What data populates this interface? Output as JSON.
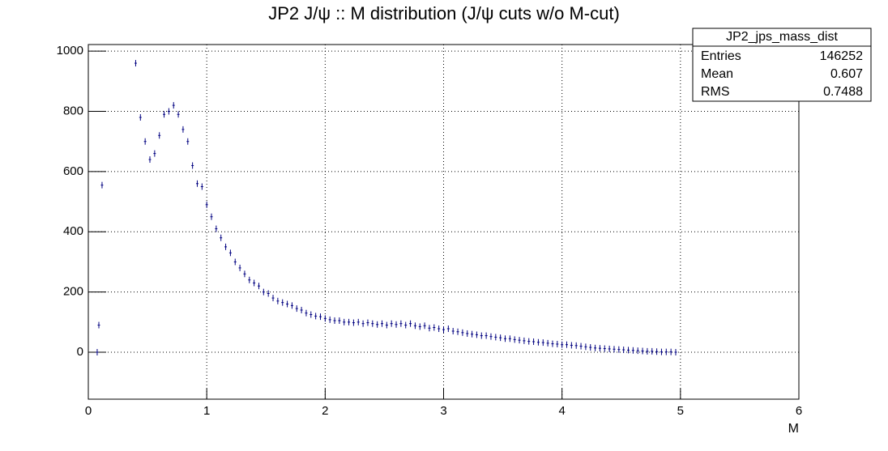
{
  "chart_data": {
    "type": "histogram",
    "title": "JP2 J/ψ :: M distribution (J/ψ cuts w/o M-cut)",
    "x_label": "M",
    "color": "#000080",
    "grid": true,
    "xlim": [
      0,
      6
    ],
    "xticks": [
      0,
      1,
      2,
      3,
      4,
      5,
      6
    ],
    "ylim": [
      -156,
      1022
    ],
    "yticks": [
      0,
      200,
      400,
      600,
      800,
      1000
    ],
    "stats": {
      "title": "JP2_jps_mass_dist",
      "rows": [
        [
          "Entries",
          "146252"
        ],
        [
          "Mean",
          "0.607"
        ],
        [
          "RMS",
          "0.7488"
        ]
      ]
    },
    "x": [
      0.075,
      0.089,
      0.116,
      0.4,
      0.44,
      0.48,
      0.52,
      0.56,
      0.6,
      0.64,
      0.68,
      0.72,
      0.76,
      0.8,
      0.84,
      0.88,
      0.92,
      0.96,
      1.0,
      1.04,
      1.08,
      1.12,
      1.16,
      1.2,
      1.24,
      1.28,
      1.32,
      1.36,
      1.4,
      1.44,
      1.48,
      1.52,
      1.56,
      1.6,
      1.64,
      1.68,
      1.72,
      1.76,
      1.8,
      1.84,
      1.88,
      1.92,
      1.96,
      2.0,
      2.04,
      2.08,
      2.12,
      2.16,
      2.2,
      2.24,
      2.28,
      2.32,
      2.36,
      2.4,
      2.44,
      2.48,
      2.52,
      2.56,
      2.6,
      2.64,
      2.68,
      2.72,
      2.76,
      2.8,
      2.84,
      2.88,
      2.92,
      2.96,
      3.0,
      3.04,
      3.08,
      3.12,
      3.16,
      3.2,
      3.24,
      3.28,
      3.32,
      3.36,
      3.4,
      3.44,
      3.48,
      3.52,
      3.56,
      3.6,
      3.64,
      3.68,
      3.72,
      3.76,
      3.8,
      3.84,
      3.88,
      3.92,
      3.96,
      4.0,
      4.04,
      4.08,
      4.12,
      4.16,
      4.2,
      4.24,
      4.28,
      4.32,
      4.36,
      4.4,
      4.44,
      4.48,
      4.52,
      4.56,
      4.6,
      4.64,
      4.68,
      4.72,
      4.76,
      4.8,
      4.84,
      4.88,
      4.92,
      4.96
    ],
    "values": [
      0,
      90,
      555,
      960,
      780,
      700,
      640,
      660,
      720,
      790,
      800,
      820,
      790,
      740,
      700,
      620,
      560,
      550,
      490,
      450,
      410,
      380,
      350,
      330,
      300,
      280,
      260,
      240,
      230,
      220,
      200,
      195,
      180,
      170,
      165,
      160,
      155,
      145,
      140,
      130,
      125,
      120,
      118,
      112,
      108,
      105,
      105,
      100,
      100,
      98,
      100,
      95,
      98,
      95,
      92,
      95,
      90,
      95,
      92,
      95,
      90,
      95,
      88,
      85,
      88,
      80,
      82,
      78,
      75,
      78,
      70,
      68,
      65,
      62,
      60,
      58,
      55,
      55,
      52,
      50,
      48,
      45,
      45,
      42,
      40,
      38,
      36,
      35,
      33,
      32,
      30,
      28,
      27,
      25,
      25,
      23,
      22,
      20,
      18,
      16,
      14,
      13,
      12,
      11,
      10,
      9,
      8,
      7,
      6,
      5,
      4,
      3,
      3,
      2,
      1,
      1,
      1,
      0
    ]
  }
}
